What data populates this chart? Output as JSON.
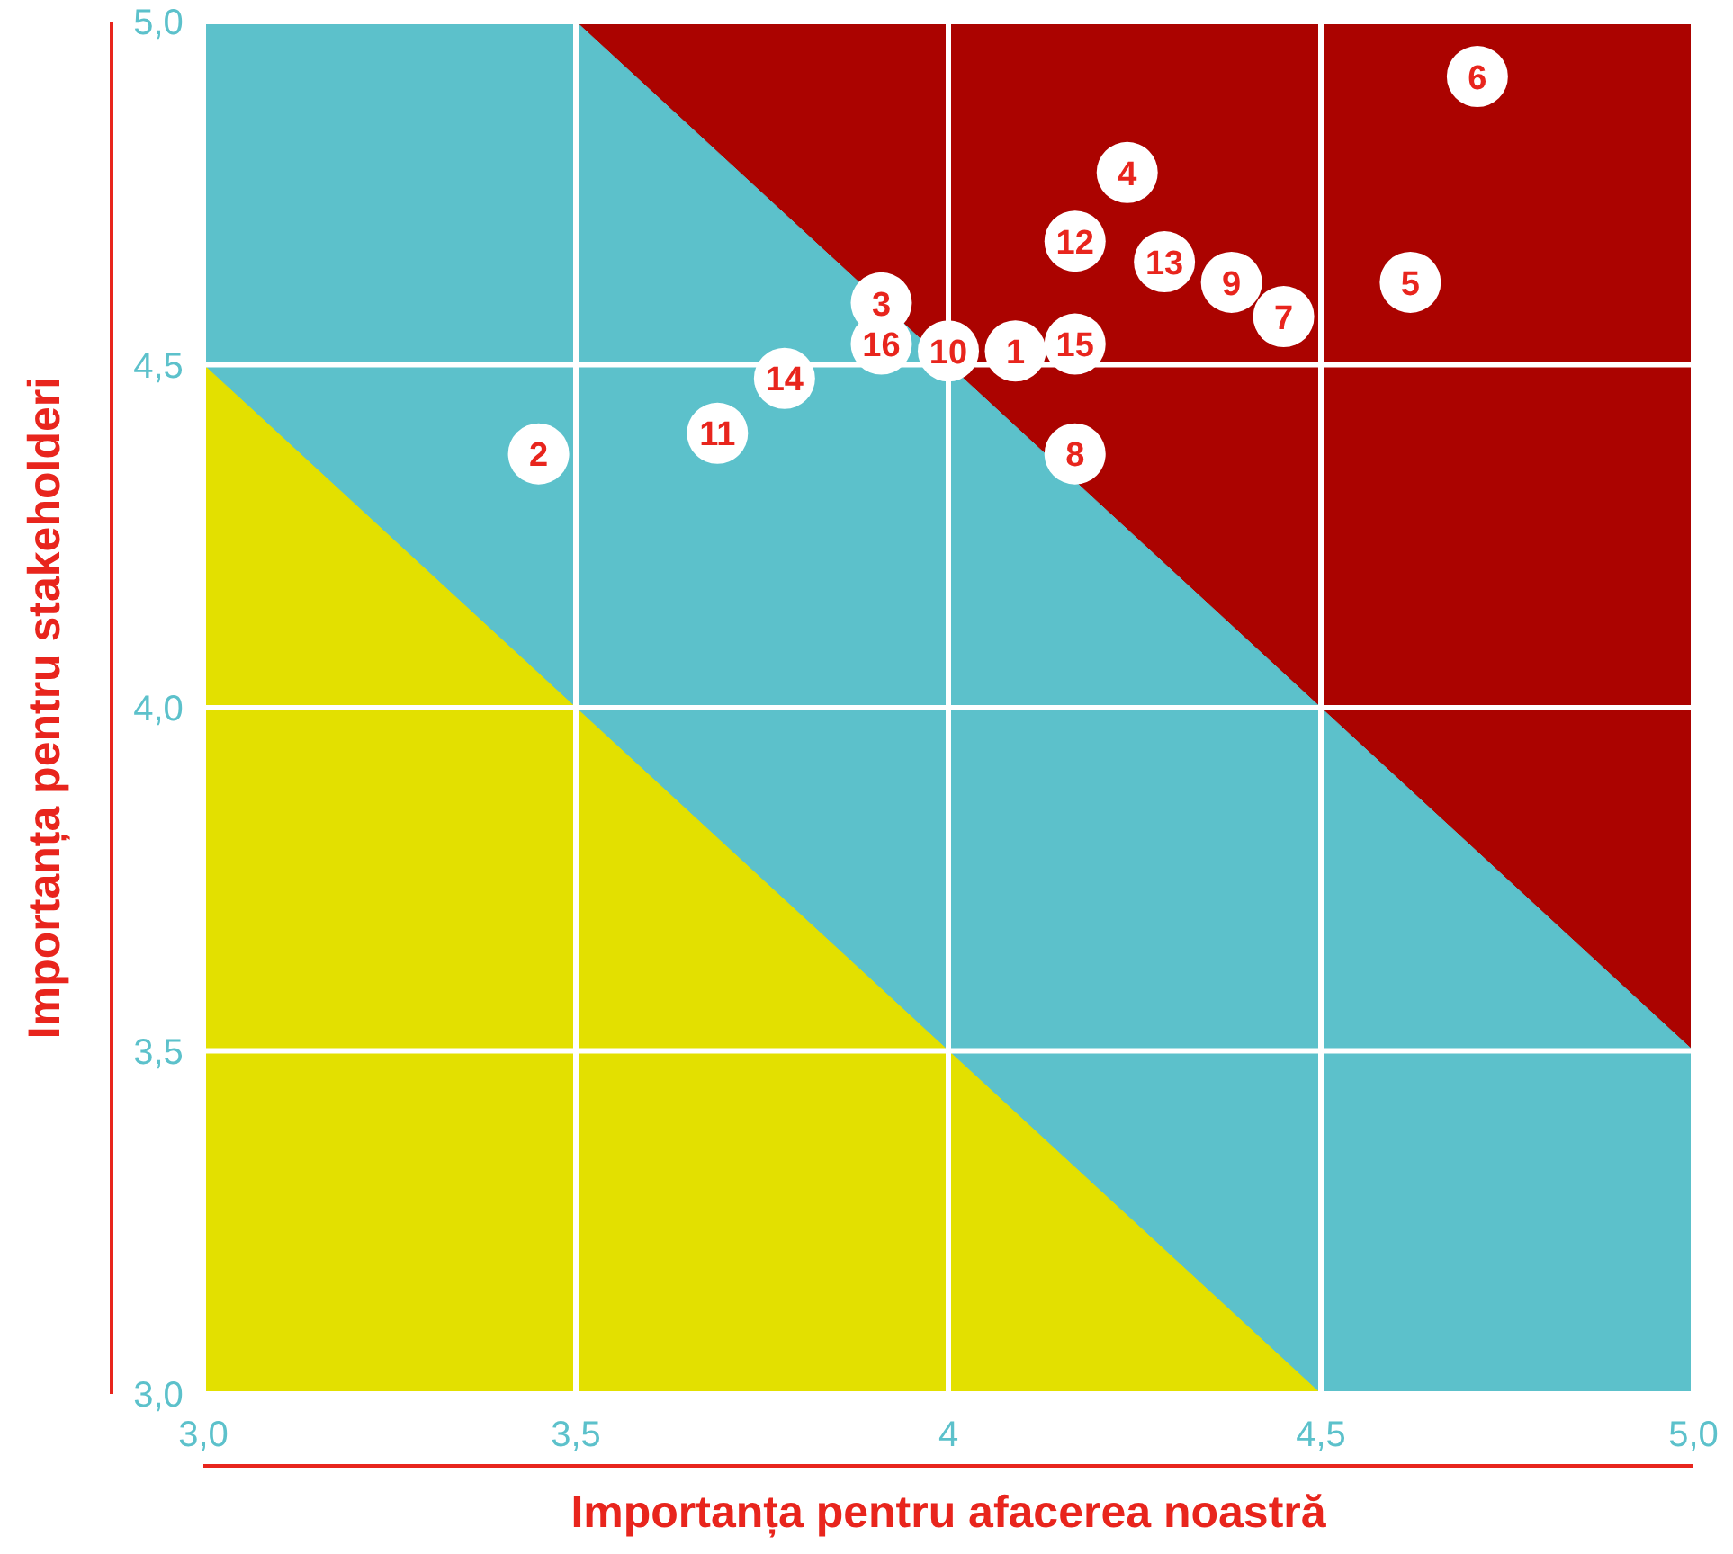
{
  "chart_data": {
    "type": "scatter",
    "xlabel": "Importanța pentru afacerea noastră",
    "ylabel": "Importanța pentru stakeholderi",
    "xlim": [
      3,
      5
    ],
    "ylim": [
      3,
      5
    ],
    "xticks": [
      {
        "value": 3,
        "label": "3,0"
      },
      {
        "value": 3.5,
        "label": "3,5"
      },
      4,
      {
        "value": 4.5,
        "label": "4,5"
      },
      {
        "value": 5,
        "label": "5,0"
      }
    ],
    "yticks": [
      {
        "value": 3,
        "label": "3,0"
      },
      {
        "value": 3.5,
        "label": "3,5"
      },
      {
        "value": 4,
        "label": "4,0"
      },
      {
        "value": 4.5,
        "label": "4,5"
      },
      {
        "value": 5,
        "label": "5,0"
      }
    ],
    "grid": true,
    "series": [
      {
        "type": "area",
        "color": "#ab0300",
        "x": [
          3.5,
          4,
          4.5,
          5
        ],
        "values": [
          5,
          5,
          5,
          5
        ]
      },
      {
        "type": "area",
        "color": "#5cc1cb",
        "x": [
          3,
          3.5,
          4.5,
          5
        ],
        "values": [
          5,
          5,
          4,
          3.5
        ]
      },
      {
        "type": "area",
        "color": "#e3e000",
        "x": [
          3,
          3.5,
          4,
          4.5
        ],
        "values": [
          4.5,
          4,
          3.5,
          3
        ]
      },
      {
        "type": "scatter",
        "color": "#ffffff",
        "marker": "circle",
        "x": [
          4.09,
          3.45,
          3.91,
          4.24,
          4.62,
          4.71,
          4.45,
          4.17,
          4.38,
          4.0,
          3.69,
          4.17,
          4.29,
          3.78,
          4.17,
          3.91
        ],
        "values": [
          4.52,
          4.37,
          4.59,
          4.78,
          4.62,
          4.92,
          4.57,
          4.37,
          4.62,
          4.52,
          4.4,
          4.68,
          4.65,
          4.48,
          4.53,
          4.53
        ]
      }
    ],
    "annotations": [
      {
        "text": "1",
        "x": 4.09,
        "y": 4.52
      },
      {
        "text": "2",
        "x": 3.45,
        "y": 4.37
      },
      {
        "text": "3",
        "x": 3.91,
        "y": 4.59
      },
      {
        "text": "4",
        "x": 4.24,
        "y": 4.78
      },
      {
        "text": "5",
        "x": 4.62,
        "y": 4.62
      },
      {
        "text": "6",
        "x": 4.71,
        "y": 4.92
      },
      {
        "text": "7",
        "x": 4.45,
        "y": 4.57
      },
      {
        "text": "8",
        "x": 4.17,
        "y": 4.37
      },
      {
        "text": "9",
        "x": 4.38,
        "y": 4.62
      },
      {
        "text": "10",
        "x": 4.0,
        "y": 4.52
      },
      {
        "text": "11",
        "x": 3.69,
        "y": 4.4
      },
      {
        "text": "12",
        "x": 4.17,
        "y": 4.68
      },
      {
        "text": "13",
        "x": 4.29,
        "y": 4.65
      },
      {
        "text": "14",
        "x": 3.78,
        "y": 4.48
      },
      {
        "text": "15",
        "x": 4.17,
        "y": 4.53
      },
      {
        "text": "16",
        "x": 3.91,
        "y": 4.53
      }
    ]
  }
}
